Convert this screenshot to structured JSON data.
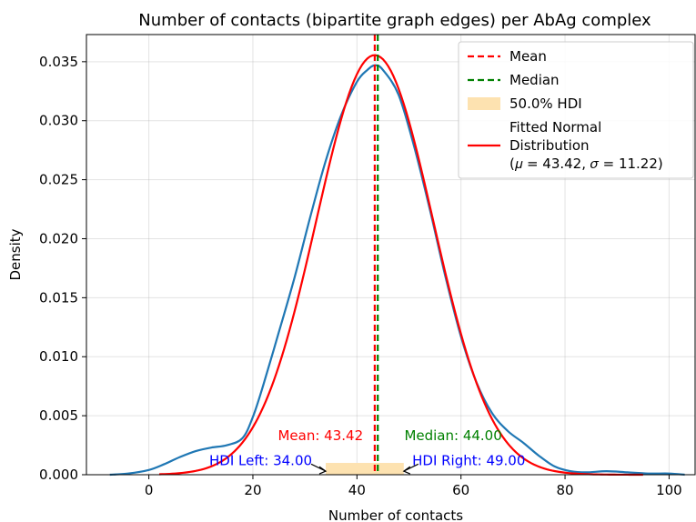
{
  "chart_data": {
    "type": "line",
    "title": "Number of contacts (bipartite graph edges) per AbAg complex",
    "xlabel": "Number of contacts",
    "ylabel": "Density",
    "xlim": [
      -12,
      105
    ],
    "ylim": [
      0,
      0.0373
    ],
    "x_ticks": [
      0,
      20,
      40,
      60,
      80,
      100
    ],
    "y_ticks": [
      0.0,
      0.005,
      0.01,
      0.015,
      0.02,
      0.025,
      0.03,
      0.035
    ],
    "x_tick_labels": [
      "0",
      "20",
      "40",
      "60",
      "80",
      "100"
    ],
    "y_tick_labels": [
      "0.000",
      "0.005",
      "0.010",
      "0.015",
      "0.020",
      "0.025",
      "0.030",
      "0.035"
    ],
    "grid": true,
    "legend_position": "top-right",
    "series": [
      {
        "role": "kde",
        "color": "#1f77b4",
        "points": [
          [
            -7.5,
            0.0
          ],
          [
            -4,
            0.0001
          ],
          [
            0,
            0.0004
          ],
          [
            3,
            0.0009
          ],
          [
            6,
            0.0015
          ],
          [
            9,
            0.002
          ],
          [
            12,
            0.0023
          ],
          [
            15,
            0.0025
          ],
          [
            18,
            0.0031
          ],
          [
            20,
            0.0049
          ],
          [
            22,
            0.0076
          ],
          [
            25,
            0.0121
          ],
          [
            28,
            0.0167
          ],
          [
            31,
            0.0218
          ],
          [
            34,
            0.0266
          ],
          [
            37,
            0.0305
          ],
          [
            40,
            0.0333
          ],
          [
            42,
            0.0343
          ],
          [
            43.5,
            0.0347
          ],
          [
            45,
            0.0343
          ],
          [
            48,
            0.0322
          ],
          [
            51,
            0.0278
          ],
          [
            54,
            0.0225
          ],
          [
            57,
            0.0168
          ],
          [
            60,
            0.0117
          ],
          [
            63,
            0.0078
          ],
          [
            66,
            0.0052
          ],
          [
            69,
            0.0037
          ],
          [
            72,
            0.0027
          ],
          [
            75,
            0.0016
          ],
          [
            78,
            0.0007
          ],
          [
            81,
            0.0003
          ],
          [
            84,
            0.0002
          ],
          [
            88,
            0.0003
          ],
          [
            92,
            0.0002
          ],
          [
            96,
            0.0001
          ],
          [
            100,
            0.0001
          ],
          [
            103,
            0.0
          ]
        ]
      },
      {
        "role": "normal_fit",
        "name": "Fitted Normal Distribution (μ = 43.42, σ = 11.22)",
        "color": "#ff0000",
        "mu": 43.42,
        "sigma": 11.22,
        "x_range": [
          2,
          95
        ]
      }
    ],
    "mean": 43.42,
    "median": 44.0,
    "hdi": {
      "left": 34.0,
      "right": 49.0,
      "level": "50.0%",
      "height": 0.001
    },
    "vlines": [
      {
        "name": "Mean",
        "x": 43.42,
        "color": "#ff0000",
        "style": "dashed"
      },
      {
        "name": "Median",
        "x": 44.0,
        "color": "#008000",
        "style": "dashed"
      }
    ],
    "legend": [
      {
        "label": "Mean",
        "kind": "dashed",
        "color": "#ff0000"
      },
      {
        "label": "Median",
        "kind": "dashed",
        "color": "#008000"
      },
      {
        "label": "50.0% HDI",
        "kind": "patch",
        "color": "#fde2b0"
      },
      {
        "label": "Fitted Normal\nDistribution\n(𝜇 = 43.42, 𝜎 = 11.22)",
        "kind": "solid",
        "color": "#ff0000"
      }
    ],
    "annotations": [
      {
        "name": "mean-annotation",
        "text": "Mean: 43.42",
        "color": "#ff0000",
        "x": 33,
        "y": 0.0033,
        "anchor": "middle"
      },
      {
        "name": "median-annotation",
        "text": "Median: 44.00",
        "color": "#008000",
        "x": 58.5,
        "y": 0.0033,
        "anchor": "middle"
      },
      {
        "name": "hdi-left-annotation",
        "text": "HDI Left: 34.00",
        "color": "#0000ff",
        "x": 21.5,
        "y": 0.0012,
        "anchor": "middle",
        "arrow_to": 34
      },
      {
        "name": "hdi-right-annotation",
        "text": "HDI Right: 49.00",
        "color": "#0000ff",
        "x": 61.5,
        "y": 0.0012,
        "anchor": "middle",
        "arrow_to": 49
      }
    ]
  }
}
